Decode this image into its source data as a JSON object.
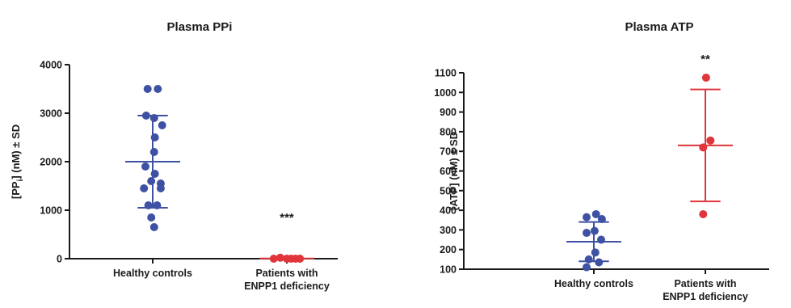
{
  "chart_data": [
    {
      "type": "scatter",
      "title": "Plasma PPi",
      "ylabel": "[PPi] (nM) ± SD",
      "ylabel_main": "[PP",
      "ylabel_sub": "i",
      "ylabel_rest": "] (nM) ± SD",
      "ylim": [
        0,
        4000
      ],
      "yticks": [
        0,
        1000,
        2000,
        3000,
        4000
      ],
      "categories": [
        "Healthy controls",
        "Patients with ENPP1 deficiency"
      ],
      "category_lines": [
        [
          "Healthy controls"
        ],
        [
          "Patients with",
          "ENPP1 deficiency"
        ]
      ],
      "groups": [
        {
          "name": "Healthy controls",
          "color": "#3f51a3",
          "values": [
            3500,
            3500,
            2950,
            2900,
            2750,
            2500,
            2200,
            1900,
            1750,
            1600,
            1550,
            1450,
            1450,
            1100,
            1100,
            850,
            650
          ],
          "offsets": [
            -0.35,
            0.35,
            -0.45,
            0.1,
            0.65,
            0.15,
            0.1,
            -0.5,
            0.15,
            -0.1,
            0.55,
            -0.6,
            0.55,
            -0.3,
            0.3,
            -0.1,
            0.1
          ],
          "mean": 2000,
          "sd": 950,
          "significance": ""
        },
        {
          "name": "Patients with ENPP1 deficiency",
          "color": "#e0353a",
          "values": [
            0,
            20,
            0,
            0,
            0,
            0
          ],
          "offsets": [
            -0.9,
            -0.45,
            0.0,
            0.3,
            0.6,
            0.9
          ],
          "mean": 5,
          "sd": 10,
          "significance": "***"
        }
      ]
    },
    {
      "type": "scatter",
      "title": "Plasma ATP",
      "ylabel": "[ATP] (nM) ± SD",
      "ylim": [
        100,
        1100
      ],
      "yticks": [
        100,
        200,
        300,
        400,
        500,
        600,
        700,
        800,
        900,
        1000,
        1100
      ],
      "categories": [
        "Healthy controls",
        "Patients with ENPP1 deficiency"
      ],
      "category_lines": [
        [
          "Healthy controls"
        ],
        [
          "Patients with",
          "ENPP1 deficiency"
        ]
      ],
      "groups": [
        {
          "name": "Healthy controls",
          "color": "#3f51a3",
          "values": [
            380,
            365,
            355,
            295,
            285,
            250,
            185,
            150,
            135,
            110
          ],
          "offsets": [
            0.15,
            -0.5,
            0.55,
            0.05,
            -0.5,
            0.5,
            0.1,
            -0.35,
            0.35,
            -0.5
          ],
          "mean": 240,
          "sd": 100,
          "significance": ""
        },
        {
          "name": "Patients with ENPP1 deficiency",
          "color": "#e0353a",
          "values": [
            1075,
            755,
            720,
            380
          ],
          "offsets": [
            0.05,
            0.35,
            -0.15,
            -0.15
          ],
          "mean": 730,
          "sd": 285,
          "significance": "**"
        }
      ]
    }
  ]
}
